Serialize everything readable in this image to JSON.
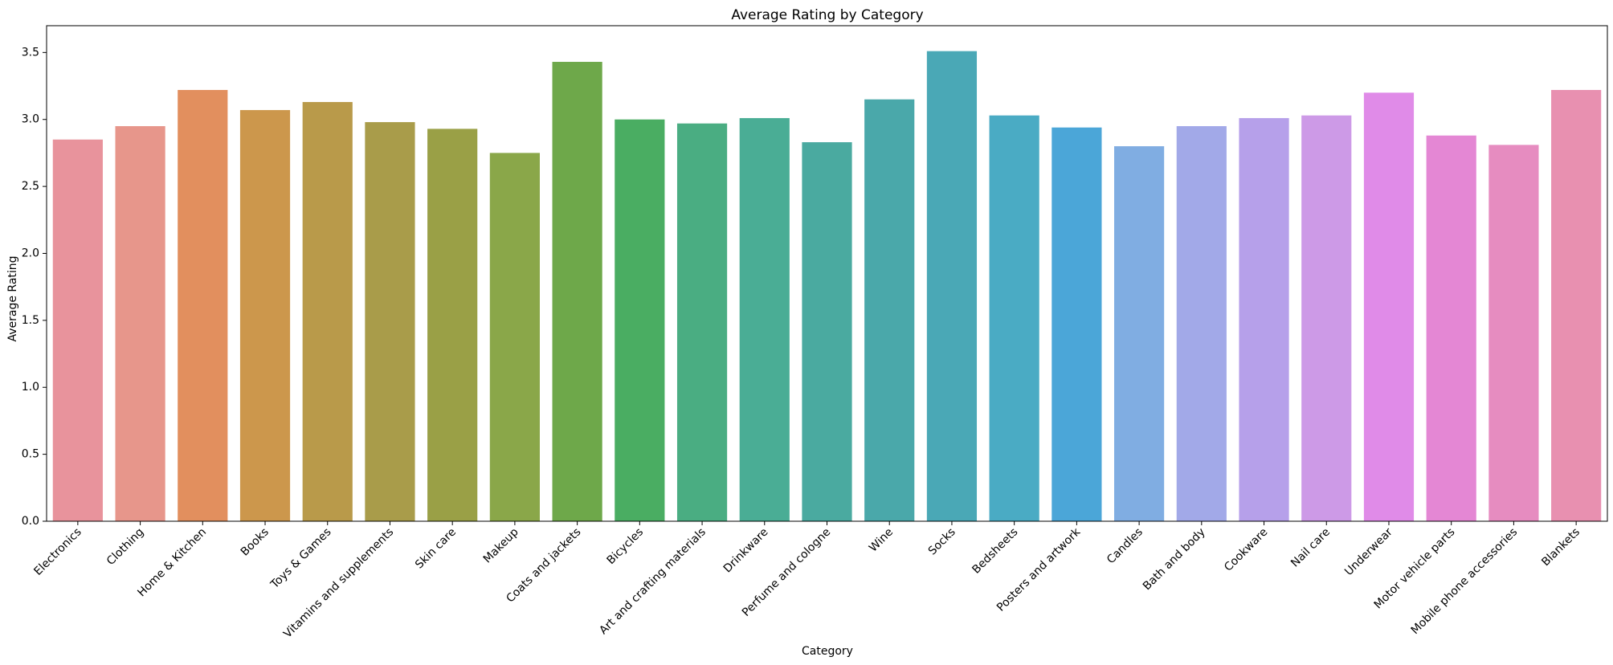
{
  "chart_data": {
    "type": "bar",
    "title": "Average Rating by Category",
    "xlabel": "Category",
    "ylabel": "Average Rating",
    "ylim": [
      0,
      3.7
    ],
    "yticks": [
      0.0,
      0.5,
      1.0,
      1.5,
      2.0,
      2.5,
      3.0,
      3.5
    ],
    "ytick_labels": [
      "0.0",
      "0.5",
      "1.0",
      "1.5",
      "2.0",
      "2.5",
      "3.0",
      "3.5"
    ],
    "grid": false,
    "categories": [
      "Electronics",
      "Clothing",
      "Home & Kitchen",
      "Books",
      "Toys & Games",
      "Vitamins and supplements",
      "Skin care",
      "Makeup",
      "Coats and jackets",
      "Bicycles",
      "Art and crafting materials",
      "Drinkware",
      "Perfume and cologne",
      "Wine",
      "Socks",
      "Bedsheets",
      "Posters and artwork",
      "Candles",
      "Bath and body",
      "Cookware",
      "Nail care",
      "Underwear",
      "Motor vehicle parts",
      "Mobile phone accessories",
      "Blankets"
    ],
    "values": [
      2.85,
      2.95,
      3.22,
      3.07,
      3.13,
      2.98,
      2.93,
      2.75,
      3.43,
      3.0,
      2.97,
      3.01,
      2.83,
      3.15,
      3.51,
      3.03,
      2.94,
      2.8,
      2.95,
      3.01,
      3.03,
      3.2,
      2.88,
      2.81,
      3.22
    ],
    "colors": [
      "#e8939c",
      "#e7968b",
      "#e28f5e",
      "#cc974c",
      "#b99a4a",
      "#a99c4a",
      "#9aa046",
      "#8aa749",
      "#6ea84a",
      "#4aad62",
      "#4aad82",
      "#4aad95",
      "#4aaaa0",
      "#4aa8aa",
      "#4aa8b6",
      "#4aabc4",
      "#4ba6d8",
      "#80ade2",
      "#a2a9e8",
      "#b6a0ea",
      "#cd9ae7",
      "#e08be8",
      "#e487d4",
      "#e68cc0",
      "#e890b0"
    ]
  }
}
